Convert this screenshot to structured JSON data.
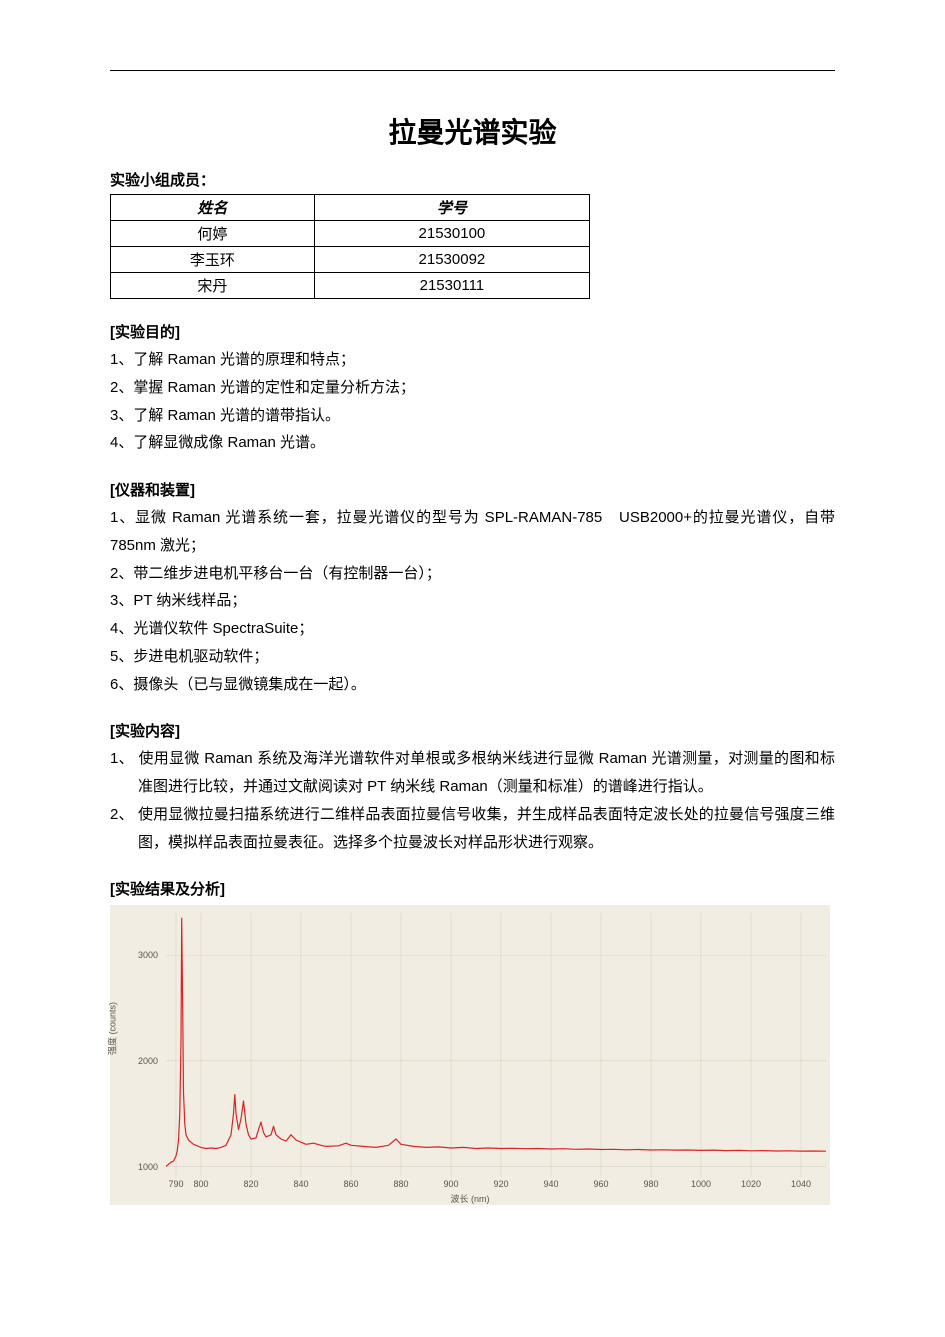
{
  "title": "拉曼光谱实验",
  "members_label": "实验小组成员：",
  "table": {
    "headers": [
      "姓名",
      "学号"
    ],
    "rows": [
      [
        "何婷",
        "21530100"
      ],
      [
        "李玉环",
        "21530092"
      ],
      [
        "宋丹",
        "21530111"
      ]
    ]
  },
  "sections": {
    "purpose": {
      "heading": "[实验目的]",
      "items": [
        "1、了解 Raman 光谱的原理和特点；",
        "2、掌握 Raman 光谱的定性和定量分析方法；",
        "3、了解 Raman 光谱的谱带指认。",
        "4、了解显微成像 Raman 光谱。"
      ]
    },
    "apparatus": {
      "heading": "[仪器和装置]",
      "items": [
        "1、显微 Raman 光谱系统一套，拉曼光谱仪的型号为 SPL-RAMAN-785　USB2000+的拉曼光谱仪，自带 785nm 激光；",
        "2、带二维步进电机平移台一台（有控制器一台）；",
        "3、PT 纳米线样品；",
        "4、光谱仪软件 SpectraSuite；",
        "5、步进电机驱动软件；",
        "6、摄像头（已与显微镜集成在一起）。"
      ]
    },
    "content": {
      "heading": "[实验内容]",
      "items": [
        "1、 使用显微 Raman 系统及海洋光谱软件对单根或多根纳米线进行显微 Raman 光谱测量，对测量的图和标准图进行比较，并通过文献阅读对 PT 纳米线 Raman（测量和标准）的谱峰进行指认。",
        "2、 使用显微拉曼扫描系统进行二维样品表面拉曼信号收集，并生成样品表面特定波长处的拉曼信号强度三维图，模拟样品表面拉曼表征。选择多个拉曼波长对样品形状进行观察。"
      ]
    },
    "results": {
      "heading": "[实验结果及分析]"
    }
  },
  "chart": {
    "type": "line",
    "background_color": "#f1ede2",
    "line_color": "#d82424",
    "grid_color": "#d8d3c5",
    "tick_color": "#5a564c",
    "xlabel": "波长 (nm)",
    "ylabel": "强度 (counts)",
    "xlim": [
      786,
      1050
    ],
    "ylim": [
      900,
      3400
    ],
    "x_ticks": [
      790,
      800,
      820,
      840,
      860,
      880,
      900,
      920,
      940,
      960,
      980,
      1000,
      1020,
      1040
    ],
    "y_ticks": [
      1000,
      2000,
      3000
    ],
    "line_width": 1.2,
    "series": [
      {
        "x": 786,
        "y": 1000
      },
      {
        "x": 787,
        "y": 1020
      },
      {
        "x": 788,
        "y": 1040
      },
      {
        "x": 789,
        "y": 1050
      },
      {
        "x": 790,
        "y": 1100
      },
      {
        "x": 790.5,
        "y": 1150
      },
      {
        "x": 791,
        "y": 1250
      },
      {
        "x": 791.5,
        "y": 1500
      },
      {
        "x": 792,
        "y": 2200
      },
      {
        "x": 792.3,
        "y": 3350
      },
      {
        "x": 792.7,
        "y": 2400
      },
      {
        "x": 793,
        "y": 1700
      },
      {
        "x": 793.5,
        "y": 1400
      },
      {
        "x": 794,
        "y": 1300
      },
      {
        "x": 795,
        "y": 1250
      },
      {
        "x": 796,
        "y": 1230
      },
      {
        "x": 797,
        "y": 1210
      },
      {
        "x": 798,
        "y": 1200
      },
      {
        "x": 800,
        "y": 1180
      },
      {
        "x": 802,
        "y": 1170
      },
      {
        "x": 804,
        "y": 1175
      },
      {
        "x": 806,
        "y": 1170
      },
      {
        "x": 808,
        "y": 1180
      },
      {
        "x": 810,
        "y": 1200
      },
      {
        "x": 812,
        "y": 1300
      },
      {
        "x": 813,
        "y": 1500
      },
      {
        "x": 813.5,
        "y": 1680
      },
      {
        "x": 814,
        "y": 1500
      },
      {
        "x": 815,
        "y": 1350
      },
      {
        "x": 816,
        "y": 1450
      },
      {
        "x": 817,
        "y": 1620
      },
      {
        "x": 818,
        "y": 1400
      },
      {
        "x": 819,
        "y": 1300
      },
      {
        "x": 820,
        "y": 1260
      },
      {
        "x": 822,
        "y": 1270
      },
      {
        "x": 823,
        "y": 1350
      },
      {
        "x": 824,
        "y": 1420
      },
      {
        "x": 825,
        "y": 1320
      },
      {
        "x": 826,
        "y": 1280
      },
      {
        "x": 828,
        "y": 1300
      },
      {
        "x": 829,
        "y": 1380
      },
      {
        "x": 830,
        "y": 1300
      },
      {
        "x": 832,
        "y": 1260
      },
      {
        "x": 834,
        "y": 1240
      },
      {
        "x": 836,
        "y": 1300
      },
      {
        "x": 838,
        "y": 1250
      },
      {
        "x": 840,
        "y": 1230
      },
      {
        "x": 842,
        "y": 1210
      },
      {
        "x": 845,
        "y": 1220
      },
      {
        "x": 848,
        "y": 1200
      },
      {
        "x": 850,
        "y": 1190
      },
      {
        "x": 855,
        "y": 1195
      },
      {
        "x": 858,
        "y": 1220
      },
      {
        "x": 860,
        "y": 1200
      },
      {
        "x": 865,
        "y": 1190
      },
      {
        "x": 870,
        "y": 1180
      },
      {
        "x": 875,
        "y": 1200
      },
      {
        "x": 878,
        "y": 1260
      },
      {
        "x": 880,
        "y": 1210
      },
      {
        "x": 885,
        "y": 1190
      },
      {
        "x": 890,
        "y": 1180
      },
      {
        "x": 895,
        "y": 1185
      },
      {
        "x": 900,
        "y": 1175
      },
      {
        "x": 905,
        "y": 1180
      },
      {
        "x": 910,
        "y": 1170
      },
      {
        "x": 915,
        "y": 1175
      },
      {
        "x": 920,
        "y": 1170
      },
      {
        "x": 925,
        "y": 1172
      },
      {
        "x": 930,
        "y": 1168
      },
      {
        "x": 935,
        "y": 1170
      },
      {
        "x": 940,
        "y": 1165
      },
      {
        "x": 945,
        "y": 1168
      },
      {
        "x": 950,
        "y": 1162
      },
      {
        "x": 955,
        "y": 1165
      },
      {
        "x": 960,
        "y": 1160
      },
      {
        "x": 965,
        "y": 1162
      },
      {
        "x": 970,
        "y": 1158
      },
      {
        "x": 975,
        "y": 1160
      },
      {
        "x": 980,
        "y": 1156
      },
      {
        "x": 985,
        "y": 1158
      },
      {
        "x": 990,
        "y": 1155
      },
      {
        "x": 995,
        "y": 1156
      },
      {
        "x": 1000,
        "y": 1152
      },
      {
        "x": 1005,
        "y": 1155
      },
      {
        "x": 1010,
        "y": 1150
      },
      {
        "x": 1015,
        "y": 1152
      },
      {
        "x": 1020,
        "y": 1148
      },
      {
        "x": 1025,
        "y": 1150
      },
      {
        "x": 1030,
        "y": 1146
      },
      {
        "x": 1035,
        "y": 1148
      },
      {
        "x": 1040,
        "y": 1145
      },
      {
        "x": 1045,
        "y": 1146
      },
      {
        "x": 1050,
        "y": 1144
      }
    ]
  }
}
